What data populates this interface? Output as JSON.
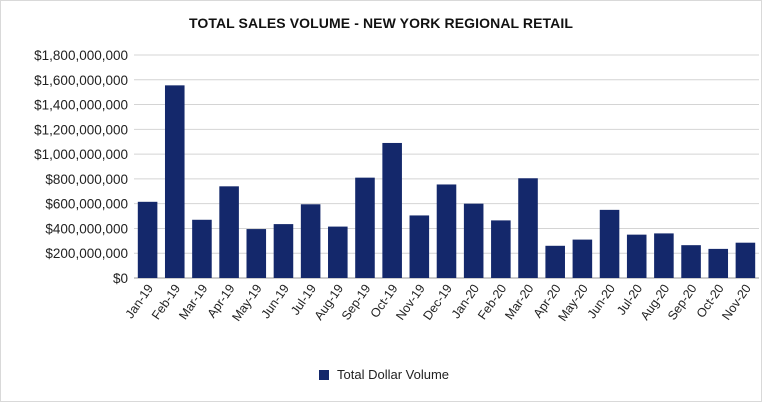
{
  "chart_data": {
    "type": "bar",
    "title": "TOTAL SALES VOLUME - NEW YORK REGIONAL RETAIL",
    "xlabel": "",
    "ylabel": "",
    "categories": [
      "Jan-19",
      "Feb-19",
      "Mar-19",
      "Apr-19",
      "May-19",
      "Jun-19",
      "Jul-19",
      "Aug-19",
      "Sep-19",
      "Oct-19",
      "Nov-19",
      "Dec-19",
      "Jan-20",
      "Feb-20",
      "Mar-20",
      "Apr-20",
      "May-20",
      "Jun-20",
      "Jul-20",
      "Aug-20",
      "Sep-20",
      "Oct-20",
      "Nov-20"
    ],
    "series": [
      {
        "name": "Total Dollar Volume",
        "color": "#14286b",
        "values": [
          615000000,
          1555000000,
          470000000,
          740000000,
          395000000,
          435000000,
          595000000,
          415000000,
          810000000,
          1090000000,
          505000000,
          755000000,
          600000000,
          465000000,
          805000000,
          260000000,
          310000000,
          550000000,
          350000000,
          360000000,
          265000000,
          235000000,
          285000000
        ]
      }
    ],
    "ylim": [
      0,
      1800000000
    ],
    "yticks": [
      0,
      200000000,
      400000000,
      600000000,
      800000000,
      1000000000,
      1200000000,
      1400000000,
      1600000000,
      1800000000
    ],
    "ytick_labels": [
      "$0",
      "$200,000,000",
      "$400,000,000",
      "$600,000,000",
      "$800,000,000",
      "$1,000,000,000",
      "$1,200,000,000",
      "$1,400,000,000",
      "$1,600,000,000",
      "$1,800,000,000"
    ],
    "grid": true,
    "legend_position": "bottom"
  }
}
